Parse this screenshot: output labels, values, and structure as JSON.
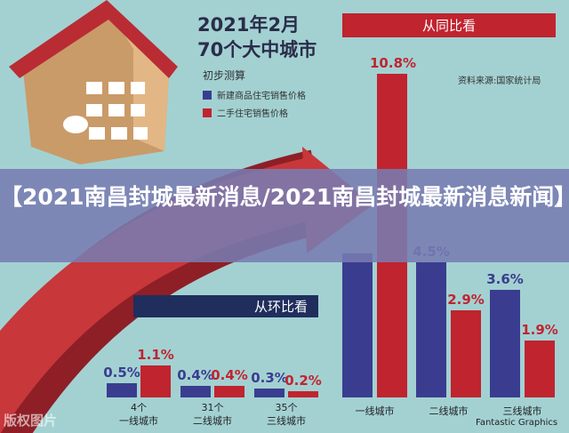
{
  "title_line1": "2021年2月",
  "title_line2": "70个大中城市",
  "subtitle": "初步测算",
  "legend": [
    {
      "label": "新建商品住宅销售价格",
      "color": "#3a3d8f"
    },
    {
      "label": "二手住宅销售价格",
      "color": "#c0242f"
    }
  ],
  "source": "资料来源:国家统计局",
  "banner": "【2021南昌封城最新消息/2021南昌封城最新消息新闻】",
  "credit": "Fantastic Graphics",
  "watermark": "版权图片",
  "chart_data": [
    {
      "type": "bar",
      "title": "从同比看",
      "categories": [
        "一线城市",
        "二线城市",
        "三线城市"
      ],
      "series": [
        {
          "name": "新建商品住宅销售价格",
          "values": [
            4.8,
            4.5,
            3.6
          ],
          "labels": [
            "",
            "4.5%",
            "3.6%"
          ]
        },
        {
          "name": "二手住宅销售价格",
          "values": [
            10.8,
            2.9,
            1.9
          ],
          "labels": [
            "10.8%",
            "2.9%",
            "1.9%"
          ]
        }
      ]
    },
    {
      "type": "bar",
      "title": "从环比看",
      "categories": [
        "一线城市",
        "二线城市",
        "三线城市"
      ],
      "counts": [
        "4个",
        "31个",
        "35个"
      ],
      "series": [
        {
          "name": "新建商品住宅销售价格",
          "values": [
            0.5,
            0.4,
            0.3
          ],
          "labels": [
            "0.5%",
            "0.4%",
            "0.3%"
          ]
        },
        {
          "name": "二手住宅销售价格",
          "values": [
            1.1,
            0.4,
            0.2
          ],
          "labels": [
            "1.1%",
            "0.4%",
            "0.2%"
          ]
        }
      ]
    }
  ]
}
